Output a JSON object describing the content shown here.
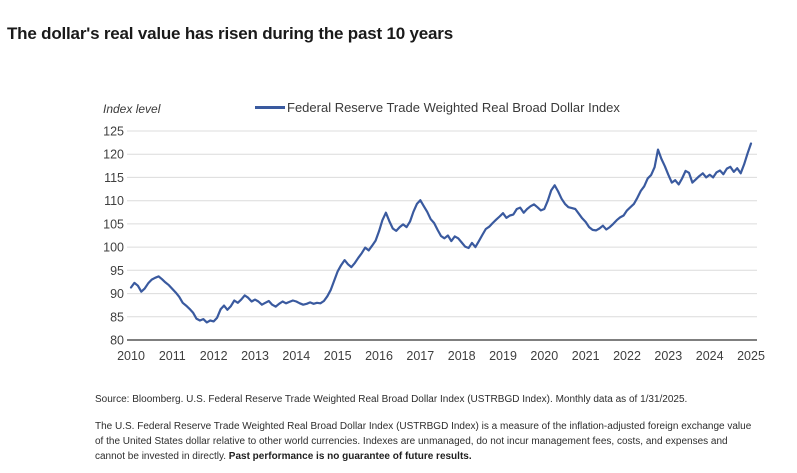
{
  "page": {
    "title": "The dollar's real value has risen during the past 10 years"
  },
  "chart_data": {
    "type": "line",
    "title": "The dollar's real value has risen during the past 10 years",
    "xlabel": "",
    "ylabel": "Index level",
    "ylim": [
      80,
      125
    ],
    "y_ticks": [
      80,
      85,
      90,
      95,
      100,
      105,
      110,
      115,
      120,
      125
    ],
    "x_ticks": [
      "2010",
      "2011",
      "2012",
      "2013",
      "2014",
      "2015",
      "2016",
      "2017",
      "2018",
      "2019",
      "2020",
      "2021",
      "2022",
      "2023",
      "2024",
      "2025"
    ],
    "x_start": "2010-01",
    "x_end": "2025-01",
    "frequency": "monthly",
    "grid": "horizontal",
    "legend_position": "top-center",
    "line_color": "#3A5A9F",
    "gridline_color": "#DCDCDC",
    "axis_color": "#7F7F7F",
    "series": [
      {
        "name": "Federal Reserve Trade Weighted Real Broad Dollar Index",
        "values": [
          91.3,
          92.3,
          91.7,
          90.4,
          91.1,
          92.2,
          93.0,
          93.4,
          93.7,
          93.1,
          92.4,
          91.8,
          91.0,
          90.2,
          89.3,
          88.0,
          87.4,
          86.7,
          85.9,
          84.6,
          84.2,
          84.5,
          83.8,
          84.2,
          84.0,
          84.8,
          86.6,
          87.4,
          86.5,
          87.3,
          88.5,
          88.0,
          88.7,
          89.6,
          89.1,
          88.3,
          88.7,
          88.3,
          87.6,
          88.0,
          88.4,
          87.6,
          87.2,
          87.8,
          88.3,
          87.9,
          88.2,
          88.5,
          88.3,
          87.9,
          87.6,
          87.8,
          88.1,
          87.8,
          88.0,
          87.9,
          88.4,
          89.4,
          90.8,
          92.8,
          94.8,
          96.1,
          97.2,
          96.3,
          95.7,
          96.6,
          97.7,
          98.7,
          99.9,
          99.3,
          100.3,
          101.4,
          103.4,
          105.8,
          107.4,
          105.6,
          104.0,
          103.5,
          104.3,
          104.9,
          104.3,
          105.5,
          107.6,
          109.3,
          110.1,
          108.8,
          107.6,
          106.0,
          105.2,
          103.7,
          102.4,
          101.9,
          102.5,
          101.3,
          102.3,
          101.9,
          101.0,
          100.1,
          99.8,
          100.9,
          100.0,
          101.3,
          102.6,
          103.9,
          104.4,
          105.2,
          105.9,
          106.6,
          107.3,
          106.3,
          106.8,
          107.0,
          108.2,
          108.5,
          107.4,
          108.2,
          108.8,
          109.2,
          108.6,
          107.9,
          108.2,
          110.0,
          112.2,
          113.3,
          112.0,
          110.4,
          109.3,
          108.6,
          108.4,
          108.2,
          107.2,
          106.2,
          105.4,
          104.3,
          103.7,
          103.6,
          104.0,
          104.6,
          103.8,
          104.3,
          105.0,
          105.8,
          106.4,
          106.8,
          107.9,
          108.6,
          109.3,
          110.6,
          112.1,
          113.1,
          114.8,
          115.5,
          117.2,
          121.0,
          119.0,
          117.4,
          115.6,
          113.9,
          114.4,
          113.5,
          114.8,
          116.4,
          116.0,
          113.9,
          114.6,
          115.3,
          115.9,
          115.0,
          115.6,
          115.0,
          116.1,
          116.5,
          115.7,
          116.9,
          117.3,
          116.2,
          117.0,
          115.9,
          117.8,
          120.2,
          122.3
        ]
      }
    ]
  },
  "footer": {
    "source": "Source: Bloomberg. U.S. Federal Reserve Trade Weighted Real Broad Dollar Index (USTRBGD Index). Monthly data as of 1/31/2025.",
    "disclosure": "The U.S. Federal Reserve Trade Weighted Real Broad Dollar Index (USTRBGD Index) is a measure of the inflation-adjusted foreign exchange value of the United States dollar relative to other world currencies. Indexes are unmanaged, do not incur management fees, costs, and expenses and cannot be invested in directly. ",
    "disclosure_bold": "Past performance is no guarantee of future results."
  }
}
